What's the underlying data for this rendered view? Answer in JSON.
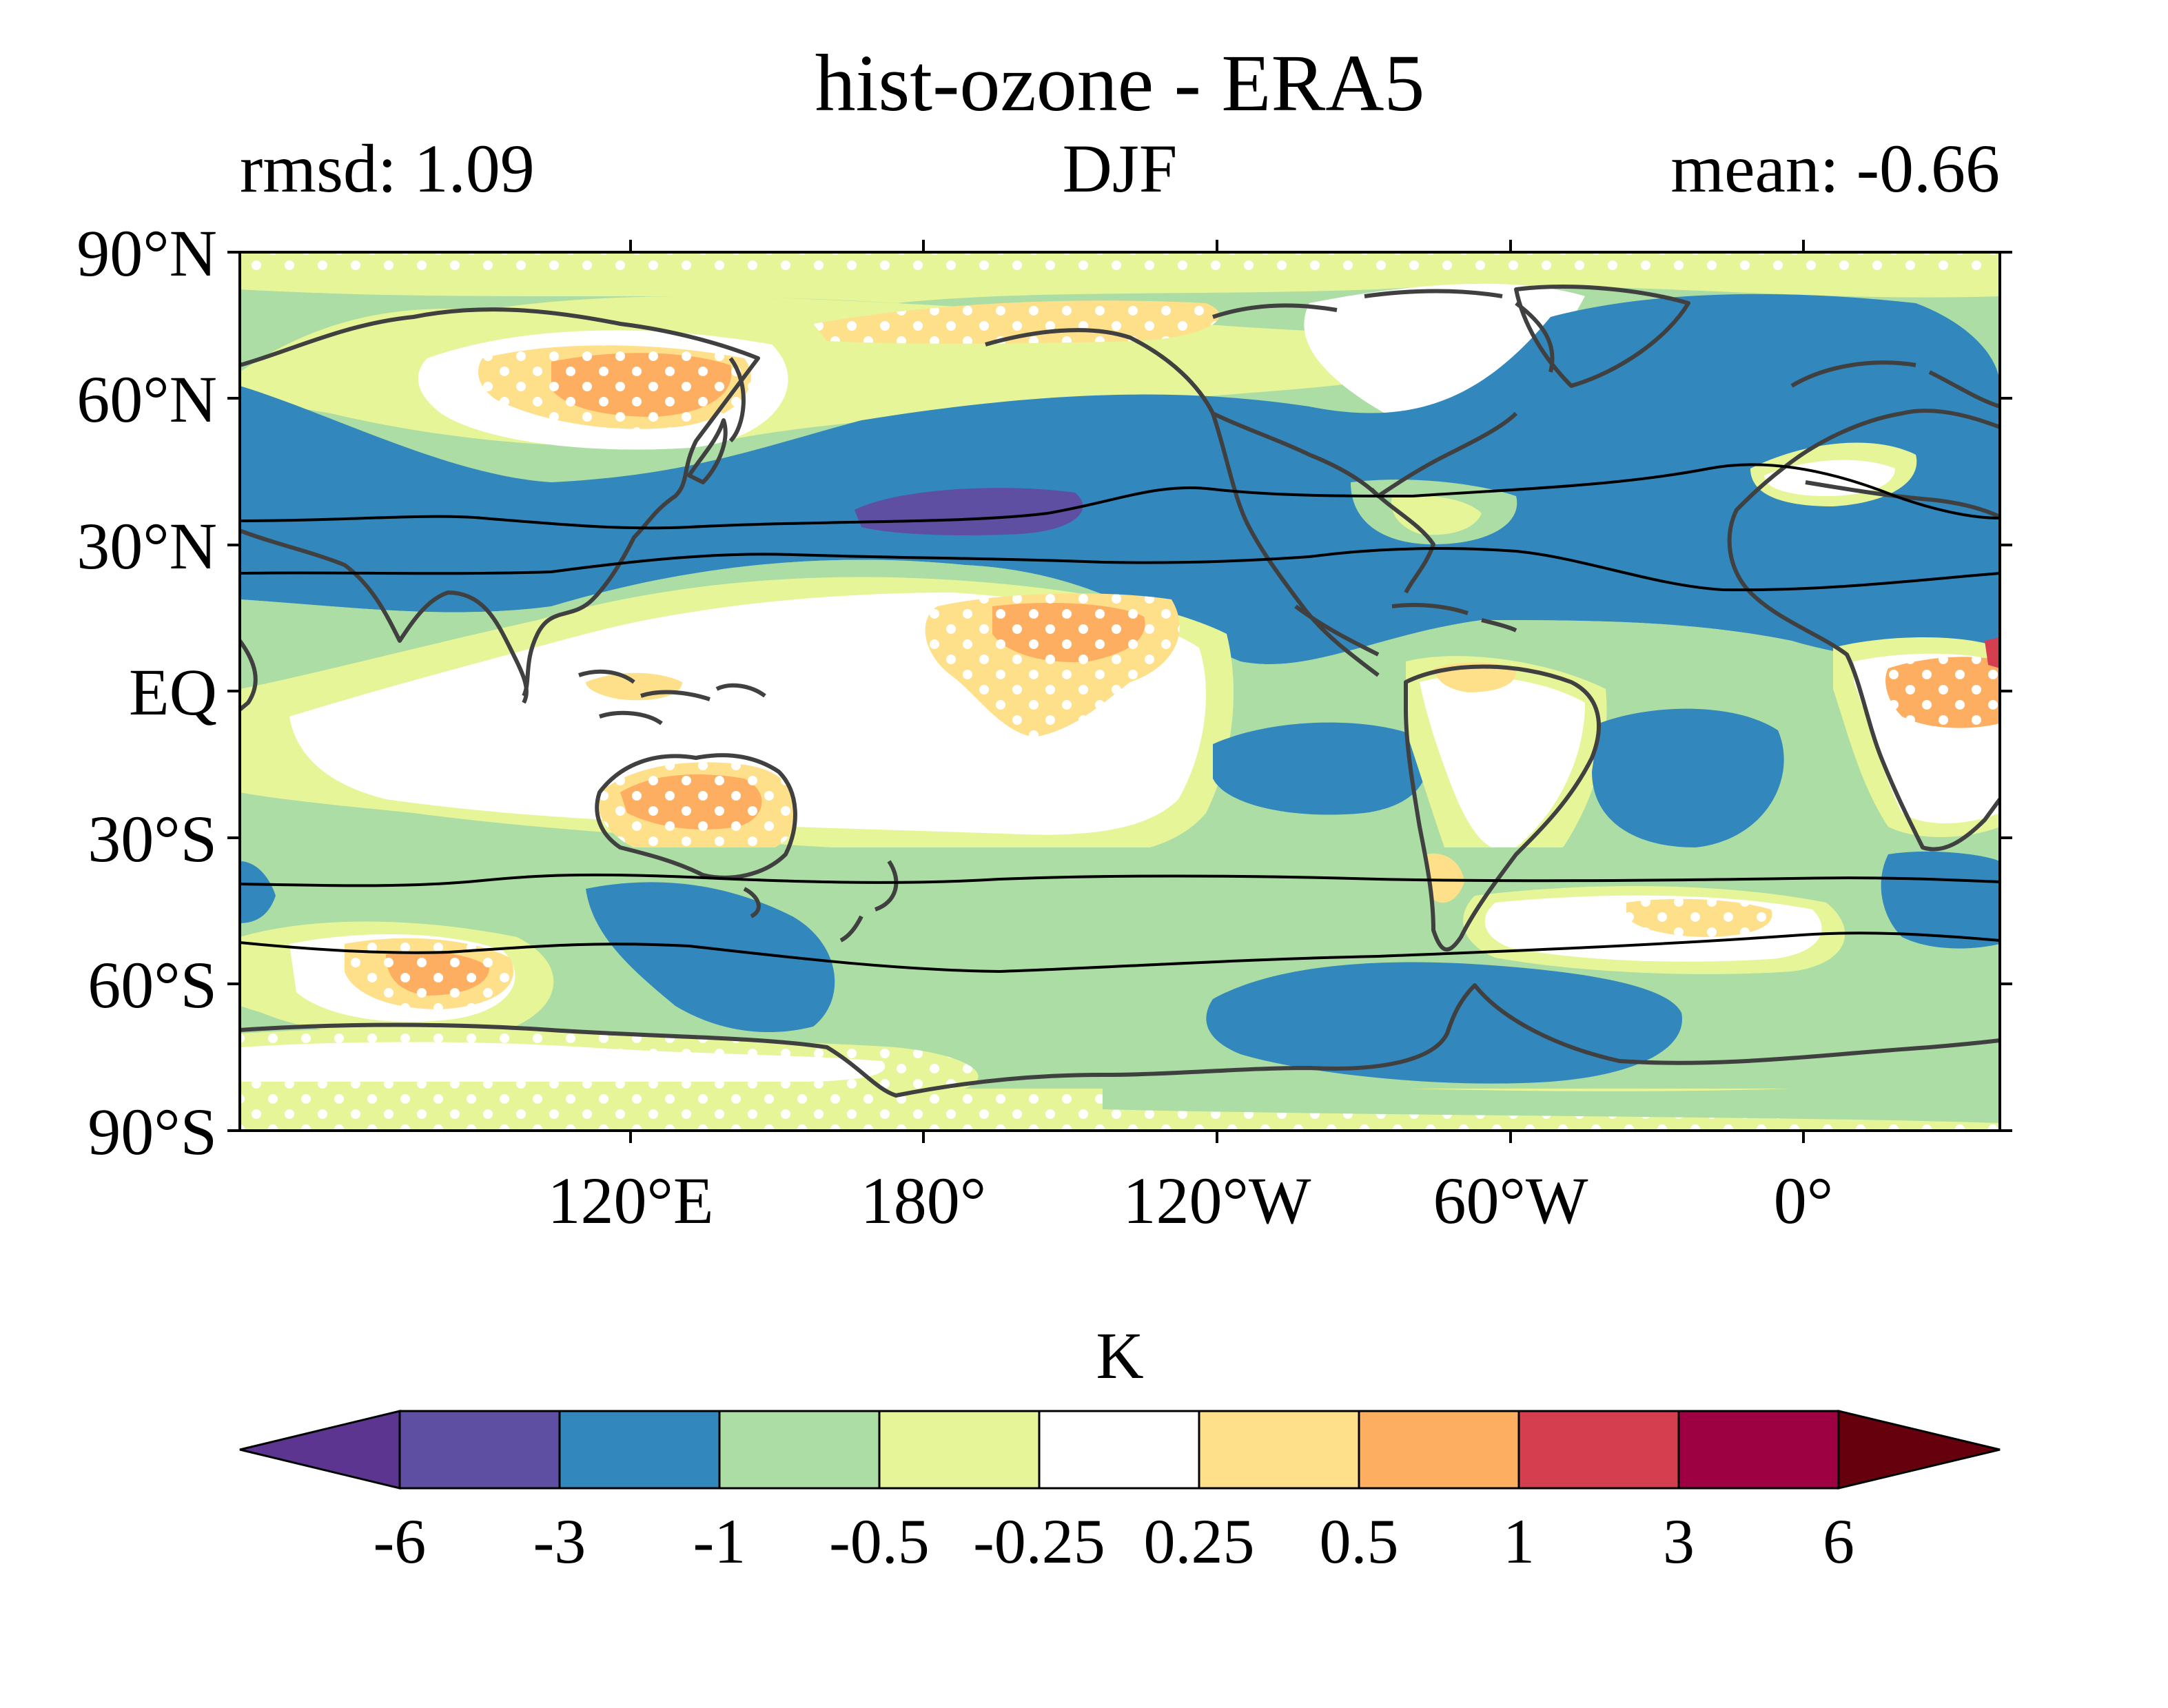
{
  "title": "hist-ozone - ERA5",
  "subtitle_left": "rmsd: 1.09",
  "subtitle_center": "DJF",
  "subtitle_right": "mean: -0.66",
  "map": {
    "lat_ticks": [
      "90°N",
      "60°N",
      "30°N",
      "EQ",
      "30°S",
      "60°S",
      "90°S"
    ],
    "lon_ticks": [
      "120°E",
      "180°",
      "120°W",
      "60°W",
      "0°"
    ],
    "lon_range": [
      40,
      400
    ],
    "lat_range": [
      -90,
      90
    ],
    "stippling": "white dots",
    "coastline_color": "#404040"
  },
  "colorbar": {
    "label": "K",
    "boundaries": [
      "-6",
      "-3",
      "-1",
      "-0.5",
      "-0.25",
      "0.25",
      "0.5",
      "1",
      "3",
      "6"
    ],
    "colors": [
      "#5e4fa2",
      "#3288bd",
      "#abdda4",
      "#e6f598",
      "#ffffff",
      "#fee08b",
      "#fdae61",
      "#d53e4f",
      "#9e0142"
    ],
    "extend_min_color": "#5b3590",
    "extend_max_color": "#67000d"
  }
}
